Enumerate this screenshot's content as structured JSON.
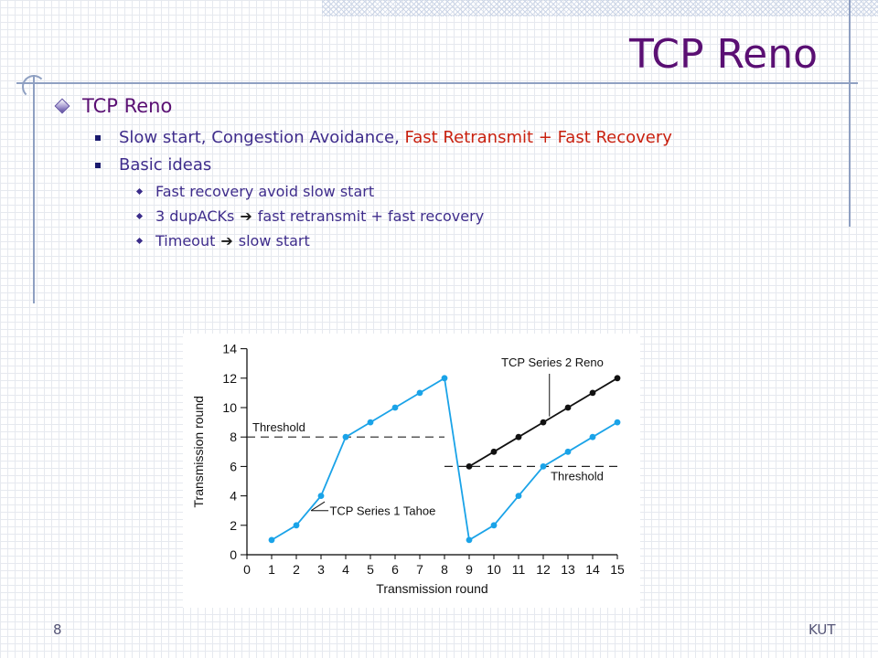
{
  "slide": {
    "title": "TCP Reno",
    "page_number": "8",
    "footer": "KUT",
    "bullets": {
      "heading": "TCP Reno",
      "line1_normal": "Slow start, Congestion Avoidance, ",
      "line1_red": "Fast Retransmit + Fast Recovery",
      "line2": "Basic ideas",
      "sub1": "Fast recovery avoid slow start",
      "sub2_a": "3 dupACKs",
      "sub2_b": "fast retransmit + fast recovery",
      "sub3_a": "Timeout",
      "sub3_b": "slow start"
    }
  },
  "colors": {
    "title": "#5a0f73",
    "tahoe": "#1aa3e8",
    "reno": "#111111",
    "red_text": "#c8200f"
  },
  "chart_data": {
    "type": "line",
    "xlabel": "Transmission round",
    "ylabel": "Transmission round",
    "xlim": [
      0,
      15
    ],
    "ylim": [
      0,
      14
    ],
    "x_ticks": [
      0,
      1,
      2,
      3,
      4,
      5,
      6,
      7,
      8,
      9,
      10,
      11,
      12,
      13,
      14,
      15
    ],
    "y_ticks": [
      0,
      2,
      4,
      6,
      8,
      10,
      12,
      14
    ],
    "series": [
      {
        "name": "TCP Series 1 Tahoe",
        "x": [
          1,
          2,
          3,
          4,
          5,
          6,
          7,
          8,
          9,
          10,
          11,
          12,
          13,
          14,
          15
        ],
        "y": [
          1,
          2,
          4,
          8,
          9,
          10,
          11,
          12,
          1,
          2,
          4,
          6,
          7,
          8,
          9
        ]
      },
      {
        "name": "TCP Series 2 Reno",
        "x": [
          9,
          10,
          11,
          12,
          13,
          14,
          15
        ],
        "y": [
          6,
          7,
          8,
          9,
          10,
          11,
          12
        ]
      }
    ],
    "thresholds": [
      {
        "label": "Threshold",
        "y": 8,
        "x_range": [
          0,
          8
        ]
      },
      {
        "label": "Threshold",
        "y": 6,
        "x_range": [
          8,
          15
        ]
      }
    ]
  }
}
